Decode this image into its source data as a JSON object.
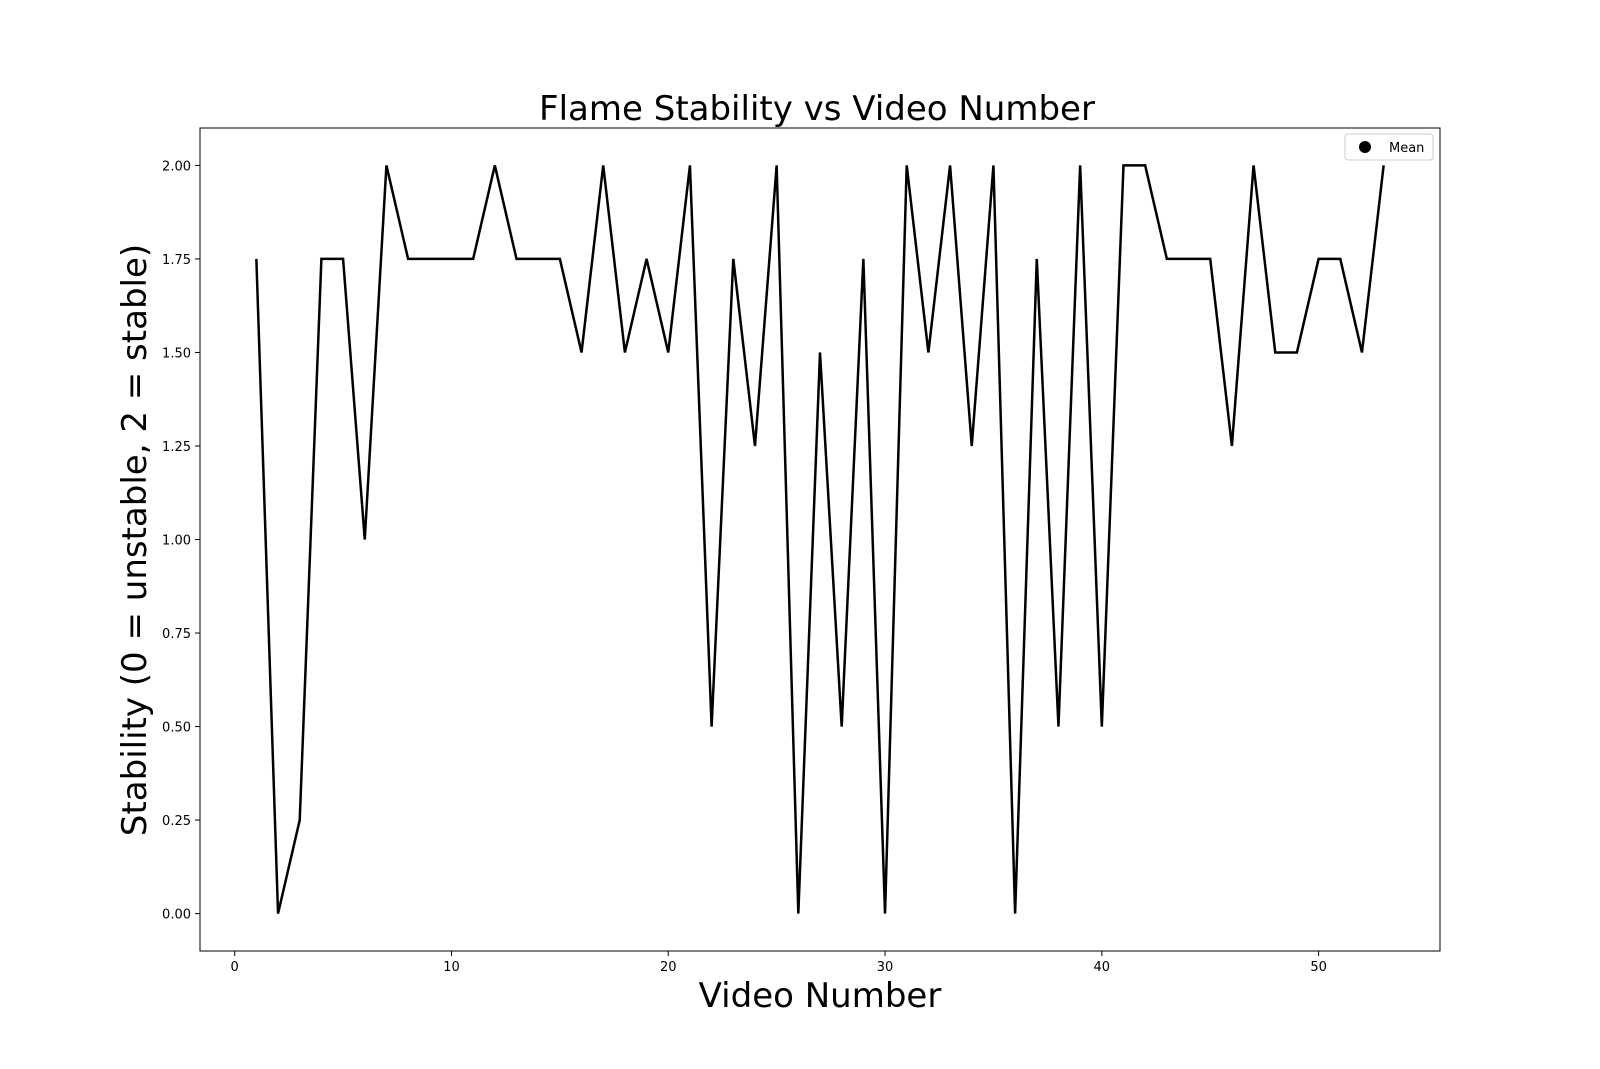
{
  "chart_data": {
    "type": "line",
    "title": "Flame Stability vs Video Number",
    "xlabel": "Video Number",
    "ylabel": "Stability (0 = unstable, 2 = stable)",
    "xlim": [
      -1.6,
      55.6
    ],
    "ylim": [
      -0.1,
      2.1
    ],
    "xticks": [
      0,
      10,
      20,
      30,
      40,
      50
    ],
    "xtick_labels": [
      "0",
      "10",
      "20",
      "30",
      "40",
      "50"
    ],
    "yticks": [
      0,
      0.25,
      0.5,
      0.75,
      1.0,
      1.25,
      1.5,
      1.75,
      2.0
    ],
    "ytick_labels": [
      "0.00",
      "0.25",
      "0.50",
      "0.75",
      "1.00",
      "1.25",
      "1.50",
      "1.75",
      "2.00"
    ],
    "grid": false,
    "legend": {
      "position": "top-right",
      "entries": [
        "Mean"
      ]
    },
    "series": [
      {
        "name": "Mean",
        "color": "#000000",
        "x": [
          1,
          2,
          3,
          4,
          5,
          6,
          7,
          8,
          9,
          10,
          11,
          12,
          13,
          14,
          15,
          16,
          17,
          18,
          19,
          20,
          21,
          22,
          23,
          24,
          25,
          26,
          27,
          28,
          29,
          30,
          31,
          32,
          33,
          34,
          35,
          36,
          37,
          38,
          39,
          40,
          41,
          42,
          43,
          44,
          45,
          46,
          47,
          48,
          49,
          50,
          51,
          52,
          53
        ],
        "y": [
          1.75,
          0,
          0.25,
          1.75,
          1.75,
          1.0,
          2.0,
          1.75,
          1.75,
          1.75,
          1.75,
          2.0,
          1.75,
          1.75,
          1.75,
          1.5,
          2.0,
          1.5,
          1.75,
          1.5,
          2.0,
          0.5,
          1.75,
          1.25,
          2.0,
          0,
          1.5,
          0.5,
          1.75,
          0,
          2.0,
          1.5,
          2.0,
          1.25,
          2.0,
          0,
          1.75,
          0.5,
          2.0,
          0.5,
          2.0,
          2.0,
          1.75,
          1.75,
          1.75,
          1.25,
          2.0,
          1.5,
          1.5,
          1.75,
          1.75,
          1.5,
          2.0
        ]
      }
    ]
  }
}
